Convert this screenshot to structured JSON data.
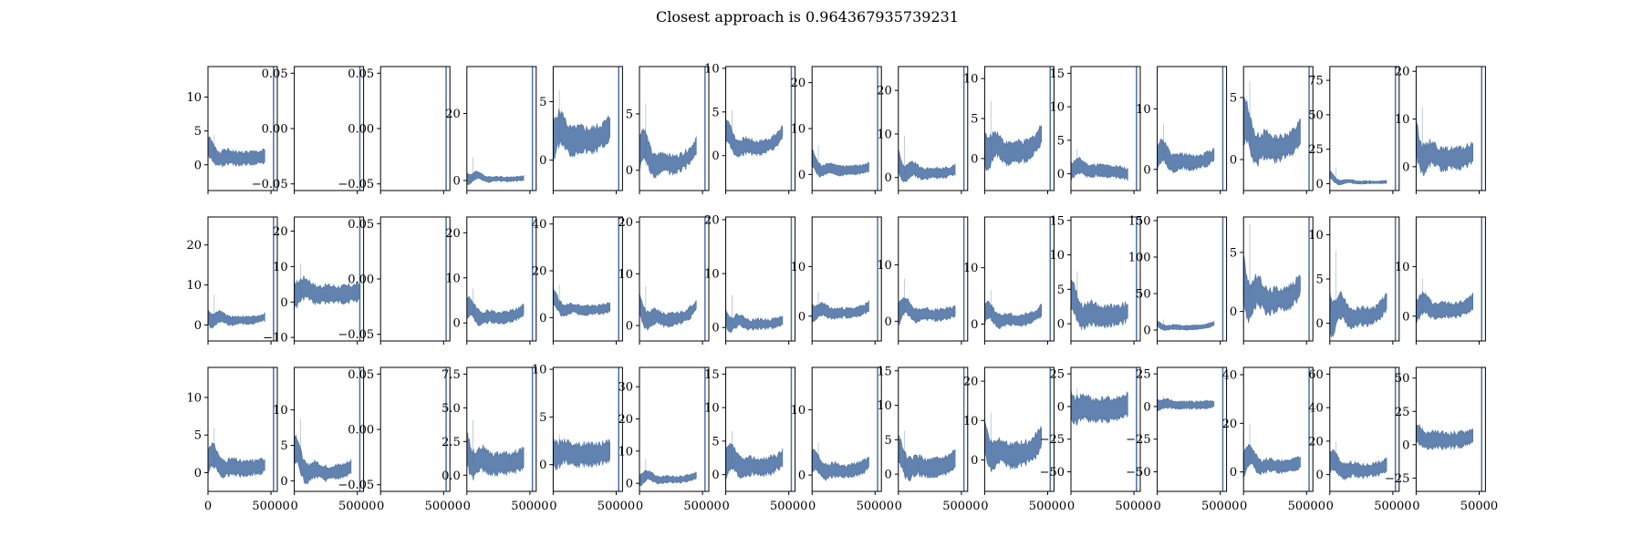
{
  "chart_data": {
    "type": "line",
    "title": "Closest approach is 0.964367935739231",
    "grid_rows": 3,
    "grid_cols": 15,
    "x_ticks": [
      "0",
      "50000"
    ],
    "series_color": "#4c72a4",
    "panels": [
      {
        "yticks": [
          "0",
          "5",
          "10"
        ],
        "ylim": [
          -3.8,
          14.5
        ],
        "base": 0.9,
        "amp": 1.6,
        "noise": 1.0,
        "endrise": 0.4,
        "cut": 0.82,
        "seed": 1
      },
      {
        "yticks": [
          "−0.05",
          "0.00",
          "0.05"
        ],
        "ylim": [
          -0.056,
          0.056
        ],
        "empty": true
      },
      {
        "yticks": [
          "−0.05",
          "0.00",
          "0.05"
        ],
        "ylim": [
          -0.056,
          0.056
        ],
        "empty": true
      },
      {
        "yticks": [
          "0",
          "20"
        ],
        "ylim": [
          -3,
          34
        ],
        "base": 0.3,
        "amp": 3.0,
        "noise": 0.7,
        "endrise": 0.4,
        "cut": 0.82,
        "seed": 4
      },
      {
        "yticks": [
          "0",
          "5"
        ],
        "ylim": [
          -2.6,
          8.0
        ],
        "base": 1.6,
        "amp": 2.0,
        "noise": 1.1,
        "endrise": 1.2,
        "cut": 0.82,
        "seed": 5
      },
      {
        "yticks": [
          "0",
          "5"
        ],
        "ylim": [
          -1.8,
          9.2
        ],
        "base": 0.4,
        "amp": 2.5,
        "noise": 0.8,
        "endrise": 1.8,
        "cut": 0.82,
        "seed": 6
      },
      {
        "yticks": [
          "0",
          "5",
          "10"
        ],
        "ylim": [
          -4.0,
          10.2
        ],
        "base": 0.8,
        "amp": 2.0,
        "noise": 0.8,
        "endrise": 2.0,
        "cut": 0.82,
        "seed": 7
      },
      {
        "yticks": [
          "0",
          "10",
          "20"
        ],
        "ylim": [
          -3.5,
          23.5
        ],
        "base": 0.8,
        "amp": 2.5,
        "noise": 1.0,
        "endrise": 0.8,
        "cut": 0.82,
        "seed": 8
      },
      {
        "yticks": [
          "0",
          "10",
          "20"
        ],
        "ylim": [
          -3,
          25.5
        ],
        "base": 0.8,
        "amp": 4.0,
        "noise": 1.2,
        "endrise": 1.0,
        "cut": 0.82,
        "seed": 9
      },
      {
        "yticks": [
          "0",
          "5",
          "10"
        ],
        "ylim": [
          -4.0,
          11.5
        ],
        "base": 0.6,
        "amp": 3.0,
        "noise": 1.3,
        "endrise": 2.5,
        "cut": 0.82,
        "seed": 10
      },
      {
        "yticks": [
          "0",
          "5",
          "10",
          "15"
        ],
        "ylim": [
          -2.5,
          16.0
        ],
        "base": 0.4,
        "amp": 1.5,
        "noise": 0.9,
        "endrise": -0.5,
        "cut": 0.82,
        "seed": 11
      },
      {
        "yticks": [
          "0",
          "10"
        ],
        "ylim": [
          -3.5,
          17.0
        ],
        "base": 1.0,
        "amp": 3.0,
        "noise": 1.2,
        "endrise": 1.5,
        "cut": 0.82,
        "seed": 12
      },
      {
        "yticks": [
          "0",
          "5"
        ],
        "ylim": [
          -2.5,
          7.5
        ],
        "base": 0.8,
        "amp": 2.5,
        "noise": 1.0,
        "endrise": 1.5,
        "cut": 0.82,
        "seed": 13
      },
      {
        "yticks": [
          "0",
          "25",
          "50",
          "75"
        ],
        "ylim": [
          -5,
          85
        ],
        "base": 0.8,
        "amp": 5.0,
        "noise": 1.0,
        "endrise": 0.5,
        "cut": 0.82,
        "seed": 14
      },
      {
        "yticks": [
          "0",
          "10",
          "20"
        ],
        "ylim": [
          -5.0,
          21.0
        ],
        "base": 1.5,
        "amp": 5.0,
        "noise": 2.2,
        "endrise": 1.5,
        "cut": 0.82,
        "seed": 15
      },
      {
        "yticks": [
          "0",
          "10",
          "20"
        ],
        "ylim": [
          -4,
          27
        ],
        "base": 1.0,
        "amp": 3.0,
        "noise": 1.0,
        "endrise": 1.0,
        "cut": 0.82,
        "seed": 16
      },
      {
        "yticks": [
          "−10",
          "0",
          "10",
          "20"
        ],
        "ylim": [
          -11,
          24
        ],
        "base": 2.0,
        "amp": 4.0,
        "noise": 2.5,
        "endrise": 1.0,
        "cut": 0.95,
        "seed": 17
      },
      {
        "yticks": [
          "−0.05",
          "0.00",
          "0.05"
        ],
        "ylim": [
          -0.056,
          0.056
        ],
        "empty": true
      },
      {
        "yticks": [
          "0",
          "10",
          "20"
        ],
        "ylim": [
          -4,
          23.5
        ],
        "base": 1.0,
        "amp": 3.0,
        "noise": 1.3,
        "endrise": 2.0,
        "cut": 0.82,
        "seed": 19
      },
      {
        "yticks": [
          "0",
          "20",
          "40"
        ],
        "ylim": [
          -10,
          43
        ],
        "base": 3.0,
        "amp": 5.0,
        "noise": 2.0,
        "endrise": 1.5,
        "cut": 0.82,
        "seed": 20
      },
      {
        "yticks": [
          "0",
          "10",
          "20"
        ],
        "ylim": [
          -3,
          21
        ],
        "base": 1.0,
        "amp": 3.0,
        "noise": 1.2,
        "endrise": 3.0,
        "cut": 0.82,
        "seed": 21
      },
      {
        "yticks": [
          "0",
          "10",
          "20"
        ],
        "ylim": [
          -2.5,
          20.5
        ],
        "base": 0.5,
        "amp": 2.5,
        "noise": 0.9,
        "endrise": 0.8,
        "cut": 0.82,
        "seed": 22
      },
      {
        "yticks": [
          "0",
          "10"
        ],
        "ylim": [
          -5,
          20
        ],
        "base": 0.5,
        "amp": 2.0,
        "noise": 1.0,
        "endrise": 1.5,
        "cut": 0.82,
        "seed": 23
      },
      {
        "yticks": [
          "0",
          "10"
        ],
        "ylim": [
          -3.5,
          18.5
        ],
        "base": 1.0,
        "amp": 3.0,
        "noise": 1.0,
        "endrise": 0.8,
        "cut": 0.82,
        "seed": 24
      },
      {
        "yticks": [
          "0",
          "10"
        ],
        "ylim": [
          -3,
          19
        ],
        "base": 0.5,
        "amp": 2.5,
        "noise": 1.0,
        "endrise": 2.0,
        "cut": 0.82,
        "seed": 25
      },
      {
        "yticks": [
          "0",
          "5",
          "10",
          "15"
        ],
        "ylim": [
          -2.5,
          15.5
        ],
        "base": 1.0,
        "amp": 3.0,
        "noise": 1.5,
        "endrise": 0.8,
        "cut": 0.82,
        "seed": 26
      },
      {
        "yticks": [
          "0",
          "50",
          "100",
          "150"
        ],
        "ylim": [
          -15,
          155
        ],
        "base": 3.0,
        "amp": 5.0,
        "noise": 3.0,
        "endrise": 6.0,
        "cut": 0.82,
        "seed": 27
      },
      {
        "yticks": [
          "0",
          "5"
        ],
        "ylim": [
          -2.5,
          8.0
        ],
        "base": 0.8,
        "amp": 3.0,
        "noise": 1.0,
        "endrise": 1.5,
        "cut": 0.82,
        "seed": 28
      },
      {
        "yticks": [
          "0",
          "5",
          "10"
        ],
        "ylim": [
          -2.0,
          12.0
        ],
        "base": 0.5,
        "amp": 3.5,
        "noise": 1.0,
        "endrise": 2.0,
        "cut": 0.82,
        "seed": 29
      },
      {
        "yticks": [
          "0",
          "10"
        ],
        "ylim": [
          -5,
          20
        ],
        "base": 1.0,
        "amp": 3.0,
        "noise": 1.5,
        "endrise": 2.0,
        "cut": 0.82,
        "seed": 30
      },
      {
        "yticks": [
          "0",
          "5",
          "10"
        ],
        "ylim": [
          -2.5,
          14.0
        ],
        "base": 0.5,
        "amp": 2.5,
        "noise": 1.0,
        "endrise": 0.5,
        "cut": 0.82,
        "seed": 31
      },
      {
        "yticks": [
          "0",
          "5",
          "10"
        ],
        "ylim": [
          -1.5,
          16.0
        ],
        "base": 1.0,
        "amp": 3.5,
        "noise": 1.0,
        "endrise": 1.0,
        "cut": 0.82,
        "seed": 32
      },
      {
        "yticks": [
          "−0.05",
          "0.00",
          "0.05"
        ],
        "ylim": [
          -0.056,
          0.056
        ],
        "empty": true
      },
      {
        "yticks": [
          "0.0",
          "2.5",
          "5.0",
          "7.5"
        ],
        "ylim": [
          -1.2,
          8.0
        ],
        "base": 0.8,
        "amp": 1.5,
        "noise": 0.8,
        "endrise": 0.5,
        "cut": 0.82,
        "seed": 34
      },
      {
        "yticks": [
          "0",
          "5",
          "10"
        ],
        "ylim": [
          -2.8,
          10.2
        ],
        "base": 1.0,
        "amp": 1.0,
        "noise": 1.2,
        "endrise": 0.5,
        "cut": 0.82,
        "seed": 35
      },
      {
        "yticks": [
          "0",
          "10",
          "20",
          "30"
        ],
        "ylim": [
          -2.5,
          36
        ],
        "base": 1.0,
        "amp": 3.0,
        "noise": 1.0,
        "endrise": 1.5,
        "cut": 0.82,
        "seed": 36
      },
      {
        "yticks": [
          "0",
          "5",
          "10",
          "15"
        ],
        "ylim": [
          -2.5,
          16.0
        ],
        "base": 1.0,
        "amp": 2.5,
        "noise": 1.3,
        "endrise": 1.5,
        "cut": 0.82,
        "seed": 37
      },
      {
        "yticks": [
          "0",
          "10"
        ],
        "ylim": [
          -2.5,
          16.5
        ],
        "base": 0.5,
        "amp": 2.0,
        "noise": 1.0,
        "endrise": 1.5,
        "cut": 0.82,
        "seed": 38
      },
      {
        "yticks": [
          "0",
          "5",
          "10",
          "15"
        ],
        "ylim": [
          -2.5,
          15.5
        ],
        "base": 0.8,
        "amp": 2.5,
        "noise": 1.3,
        "endrise": 1.5,
        "cut": 0.82,
        "seed": 39
      },
      {
        "yticks": [
          "0",
          "10",
          "20"
        ],
        "ylim": [
          -8,
          23.5
        ],
        "base": 1.0,
        "amp": 5.0,
        "noise": 3.0,
        "endrise": 5.0,
        "cut": 0.82,
        "seed": 40
      },
      {
        "yticks": [
          "−50",
          "−25",
          "0",
          "25"
        ],
        "ylim": [
          -65,
          30
        ],
        "base": -3.0,
        "amp": 8.0,
        "noise": 9.0,
        "endrise": 5.0,
        "cut": 0.82,
        "seed": 41
      },
      {
        "yticks": [
          "−50",
          "−25",
          "0",
          "25"
        ],
        "ylim": [
          -65,
          30
        ],
        "base": 1.0,
        "amp": 3.0,
        "noise": 3.0,
        "endrise": 1.0,
        "cut": 0.82,
        "seed": 42
      },
      {
        "yticks": [
          "0",
          "20",
          "40"
        ],
        "ylim": [
          -8,
          43
        ],
        "base": 2.0,
        "amp": 8.0,
        "noise": 2.5,
        "endrise": 2.0,
        "cut": 0.82,
        "seed": 43
      },
      {
        "yticks": [
          "0",
          "20",
          "40",
          "60"
        ],
        "ylim": [
          -10,
          64
        ],
        "base": 2.0,
        "amp": 8.0,
        "noise": 4.0,
        "endrise": 4.0,
        "cut": 0.82,
        "seed": 44
      },
      {
        "yticks": [
          "−25",
          "0",
          "25",
          "50"
        ],
        "ylim": [
          -35,
          58
        ],
        "base": 3.0,
        "amp": 5.0,
        "noise": 6.0,
        "endrise": 4.0,
        "cut": 0.82,
        "seed": 45
      }
    ]
  }
}
